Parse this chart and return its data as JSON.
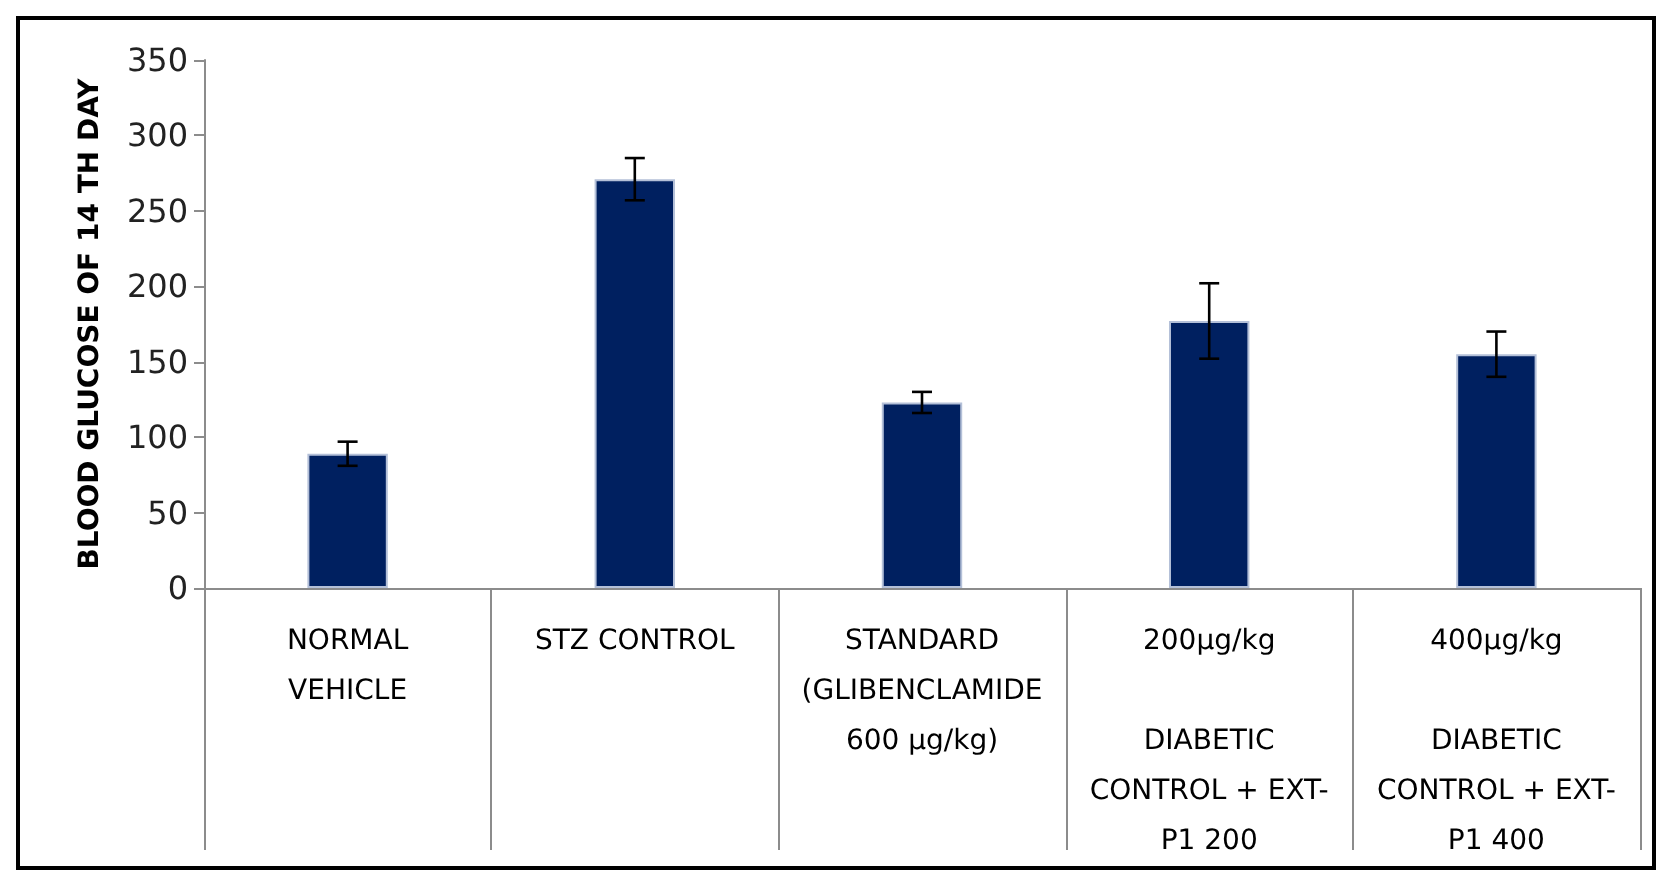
{
  "chart_data": {
    "type": "bar",
    "ylabel": "BLOOD GLUCOSE OF 14 TH DAY",
    "categories": [
      "NORMAL\nVEHICLE",
      "STZ CONTROL",
      "STANDARD\n(GLIBENCLAMIDE\n600 µg/kg)",
      "200µg/kg\n\nDIABETIC\nCONTROL + EXT-\nP1 200",
      "400µg/kg\n\nDIABETIC\nCONTROL + EXT-\nP1 400"
    ],
    "values": [
      89,
      271,
      123,
      177,
      155
    ],
    "errors": [
      8,
      14,
      7,
      25,
      15
    ],
    "color": "#002060",
    "ylim": [
      0,
      350
    ],
    "yticks": [
      0,
      50,
      100,
      150,
      200,
      250,
      300,
      350
    ],
    "grid": false
  }
}
